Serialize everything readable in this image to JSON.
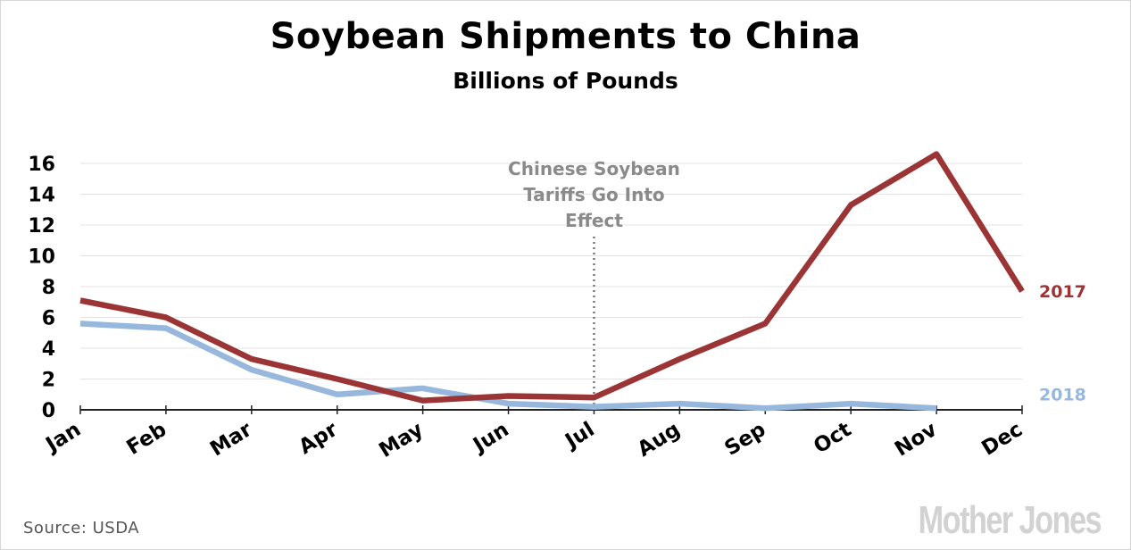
{
  "chart_data": {
    "type": "line",
    "title": "Soybean Shipments to China",
    "subtitle": "Billions of Pounds",
    "categories": [
      "Jan",
      "Feb",
      "Mar",
      "Apr",
      "May",
      "Jun",
      "Jul",
      "Aug",
      "Sep",
      "Oct",
      "Nov",
      "Dec"
    ],
    "series": [
      {
        "name": "2017",
        "color": "#9b3535",
        "values": [
          7.1,
          6.0,
          3.3,
          2.0,
          0.6,
          0.9,
          0.8,
          3.3,
          5.6,
          13.3,
          16.6,
          7.7
        ]
      },
      {
        "name": "2018",
        "color": "#97b8dc",
        "values": [
          5.6,
          5.3,
          2.6,
          1.0,
          1.4,
          0.4,
          0.2,
          0.4,
          0.1,
          0.4,
          0.1,
          null
        ]
      }
    ],
    "ylim": [
      0,
      16
    ],
    "yticks": [
      0,
      2,
      4,
      6,
      8,
      10,
      12,
      14,
      16
    ],
    "grid": true,
    "annotation": {
      "text_lines": [
        "Chinese Soybean",
        "Tariffs Go Into",
        "Effect"
      ],
      "at_category": "Jul"
    }
  },
  "footer": {
    "source": "Source:  USDA",
    "logo": "Mother Jones"
  }
}
